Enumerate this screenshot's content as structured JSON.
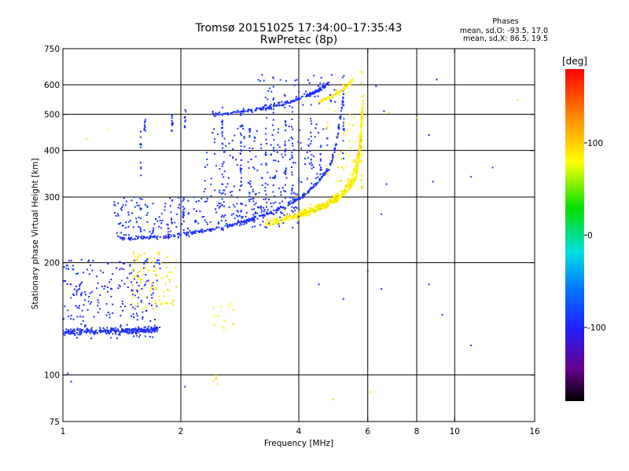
{
  "chart_data": {
    "type": "scatter",
    "title": "Tromsø 20151025 17:34:00–17:35:43",
    "subtitle": "RwPretec (8p)",
    "info": {
      "heading": "Phases",
      "line1": "mean, sd,O: -93.5, 17.0",
      "line2": "mean, sd,X:  86.5, 19.5"
    },
    "xlabel": "Frequency [MHz]",
    "ylabel": "Stationary phase Virtual Height [km]",
    "xscale": "log",
    "yscale": "log",
    "xlim": [
      1,
      16
    ],
    "ylim": [
      75,
      750
    ],
    "xticks": [
      1,
      2,
      4,
      6,
      8,
      10,
      16
    ],
    "xtick_labels": [
      "1",
      "2",
      "4",
      "6",
      "8",
      "10",
      "16"
    ],
    "x_gridlines": [
      2,
      4,
      6,
      8,
      10
    ],
    "yticks": [
      75,
      100,
      200,
      300,
      400,
      500,
      600,
      750
    ],
    "ytick_labels": [
      "75",
      "100",
      "200",
      "300",
      "400",
      "500",
      "600",
      "750"
    ],
    "y_gridlines": [
      100,
      200,
      300,
      400,
      500,
      600
    ],
    "grid": true,
    "colorbar": {
      "label": "[deg]",
      "range": [
        -180,
        180
      ],
      "ticks": [
        100,
        0,
        -100
      ],
      "tick_labels": [
        "100",
        "0",
        "-100"
      ],
      "colormap": "rainbow (black → purple → blue → cyan → green → yellow → orange → red)"
    },
    "series": [
      {
        "mode": "O",
        "phase_mean": -93.5,
        "phase_sd": 17.0,
        "traces": [
          {
            "x": [
              1.4,
              1.55,
              1.7,
              1.9,
              2.1,
              2.3,
              2.6,
              2.9,
              3.2,
              3.5,
              3.8,
              4.1,
              4.4,
              4.8,
              5.0,
              5.2
            ],
            "y": [
              232,
              232,
              234,
              236,
              240,
              244,
              250,
              258,
              266,
              276,
              288,
              302,
              322,
              360,
              420,
              560
            ],
            "jitter_y": 0.02,
            "density": 6
          },
          {
            "x": [
              1.0,
              1.2,
              1.4,
              1.6,
              1.75
            ],
            "y": [
              130,
              131,
              131,
              132,
              133
            ],
            "jitter_y": 0.03,
            "density": 18
          },
          {
            "x": [
              2.4,
              2.7,
              3.0,
              3.3,
              3.6,
              3.9,
              4.2,
              4.5,
              4.8
            ],
            "y": [
              500,
              505,
              512,
              520,
              532,
              545,
              560,
              580,
              610
            ],
            "jitter_y": 0.02,
            "density": 6
          }
        ],
        "columns": [
          {
            "x": 1.58,
            "y0": 230,
            "y1": 480,
            "n": 20
          },
          {
            "x": 1.62,
            "y0": 440,
            "y1": 485,
            "n": 10
          },
          {
            "x": 1.9,
            "y0": 450,
            "y1": 500,
            "n": 12
          },
          {
            "x": 2.03,
            "y0": 240,
            "y1": 300,
            "n": 10
          },
          {
            "x": 2.05,
            "y0": 460,
            "y1": 520,
            "n": 10
          },
          {
            "x": 2.55,
            "y0": 250,
            "y1": 530,
            "n": 24
          },
          {
            "x": 2.85,
            "y0": 260,
            "y1": 540,
            "n": 26
          },
          {
            "x": 3.0,
            "y0": 280,
            "y1": 460,
            "n": 14
          },
          {
            "x": 3.3,
            "y0": 275,
            "y1": 560,
            "n": 22
          },
          {
            "x": 3.45,
            "y0": 300,
            "y1": 620,
            "n": 20
          },
          {
            "x": 3.7,
            "y0": 290,
            "y1": 480,
            "n": 18
          },
          {
            "x": 3.85,
            "y0": 300,
            "y1": 560,
            "n": 18
          },
          {
            "x": 4.3,
            "y0": 320,
            "y1": 500,
            "n": 14
          },
          {
            "x": 4.55,
            "y0": 330,
            "y1": 420,
            "n": 10
          },
          {
            "x": 5.2,
            "y0": 380,
            "y1": 640,
            "n": 22
          }
        ],
        "clouds": [
          {
            "x0": 1.0,
            "x1": 1.78,
            "y0": 125,
            "y1": 205,
            "n": 230
          },
          {
            "x0": 1.35,
            "x1": 2.1,
            "y0": 232,
            "y1": 300,
            "n": 120
          },
          {
            "x0": 2.15,
            "x1": 4.0,
            "y0": 248,
            "y1": 320,
            "n": 170
          },
          {
            "x0": 2.3,
            "x1": 4.8,
            "y0": 320,
            "y1": 470,
            "n": 140
          },
          {
            "x0": 3.1,
            "x1": 5.0,
            "y0": 520,
            "y1": 640,
            "n": 45
          }
        ],
        "points": [
          [
            1.05,
            96
          ],
          [
            1.03,
            101
          ],
          [
            2.05,
            93
          ],
          [
            4.5,
            175
          ],
          [
            5.2,
            160
          ],
          [
            6.0,
            190
          ],
          [
            6.5,
            170
          ],
          [
            6.7,
            325
          ],
          [
            8.6,
            440
          ],
          [
            8.8,
            330
          ],
          [
            8.6,
            175
          ],
          [
            9.3,
            145
          ],
          [
            9.0,
            620
          ],
          [
            11.0,
            340
          ],
          [
            12.5,
            360
          ],
          [
            11.0,
            120
          ],
          [
            6.5,
            270
          ],
          [
            6.3,
            595
          ],
          [
            6.6,
            510
          ]
        ]
      },
      {
        "mode": "X",
        "phase_mean": 86.5,
        "phase_sd": 19.5,
        "traces": [
          {
            "x": [
              3.3,
              3.6,
              3.9,
              4.2,
              4.5,
              4.8,
              5.1,
              5.4,
              5.6,
              5.7,
              5.78,
              5.83
            ],
            "y": [
              255,
              260,
              266,
              272,
              279,
              288,
              300,
              318,
              340,
              380,
              440,
              560
            ],
            "jitter_y": 0.03,
            "density": 9
          },
          {
            "x": [
              4.0,
              4.4,
              4.8,
              5.2,
              5.5,
              5.7,
              5.8
            ],
            "y": [
              270,
              280,
              292,
              310,
              340,
              400,
              500
            ],
            "jitter_y": 0.04,
            "density": 7
          },
          {
            "x": [
              4.5,
              4.8,
              5.1,
              5.3,
              5.5
            ],
            "y": [
              540,
              555,
              575,
              595,
              620
            ],
            "jitter_y": 0.02,
            "density": 4
          }
        ],
        "columns": [
          {
            "x": 5.8,
            "y0": 300,
            "y1": 660,
            "n": 22
          }
        ],
        "clouds": [
          {
            "x0": 1.5,
            "x1": 1.95,
            "y0": 150,
            "y1": 215,
            "n": 90
          },
          {
            "x0": 2.4,
            "x1": 2.8,
            "y0": 130,
            "y1": 160,
            "n": 12
          },
          {
            "x0": 2.4,
            "x1": 2.5,
            "y0": 92,
            "y1": 100,
            "n": 5
          },
          {
            "x0": 4.7,
            "x1": 5.6,
            "y0": 330,
            "y1": 520,
            "n": 40
          }
        ],
        "points": [
          [
            1.15,
            430
          ],
          [
            1.3,
            455
          ],
          [
            4.9,
            86
          ],
          [
            6.1,
            90
          ],
          [
            6.8,
            505
          ],
          [
            8.0,
            490
          ],
          [
            14.5,
            545
          ],
          [
            5.0,
            580
          ],
          [
            5.2,
            600
          ],
          [
            4.2,
            380
          ]
        ]
      }
    ]
  }
}
